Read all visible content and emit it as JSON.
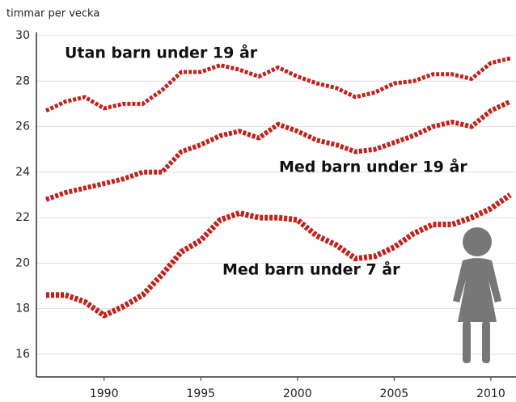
{
  "chart_data": {
    "type": "line",
    "y_label": "timmar per vecka",
    "x": [
      1987,
      1988,
      1989,
      1990,
      1991,
      1992,
      1993,
      1994,
      1995,
      1996,
      1997,
      1998,
      1999,
      2000,
      2001,
      2002,
      2003,
      2004,
      2005,
      2006,
      2007,
      2008,
      2009,
      2010,
      2011
    ],
    "series": [
      {
        "name": "Utan barn under 19 år",
        "color": "#c0221c",
        "values": [
          26.7,
          27.1,
          27.3,
          26.8,
          27.0,
          27.0,
          27.6,
          28.4,
          28.4,
          28.7,
          28.5,
          28.2,
          28.6,
          28.2,
          27.9,
          27.7,
          27.3,
          27.5,
          27.9,
          28.0,
          28.3,
          28.3,
          28.1,
          28.8,
          29.0
        ]
      },
      {
        "name": "Med barn under 19 år",
        "color": "#c0221c",
        "values": [
          22.8,
          23.1,
          23.3,
          23.5,
          23.7,
          24.0,
          24.0,
          24.9,
          25.2,
          25.6,
          25.8,
          25.5,
          26.1,
          25.8,
          25.4,
          25.2,
          24.9,
          25.0,
          25.3,
          25.6,
          26.0,
          26.2,
          26.0,
          26.7,
          27.1
        ]
      },
      {
        "name": "Med barn under 7 år",
        "color": "#c0221c",
        "values": [
          18.6,
          18.6,
          18.3,
          17.7,
          18.1,
          18.6,
          19.5,
          20.5,
          21.0,
          21.9,
          22.2,
          22.0,
          22.0,
          21.9,
          21.2,
          20.8,
          20.2,
          20.3,
          20.7,
          21.3,
          21.7,
          21.7,
          22.0,
          22.4,
          23.0
        ]
      }
    ],
    "xlim": [
      1986.5,
      2011.3
    ],
    "xticks": [
      1990,
      1995,
      2000,
      2005,
      2010
    ],
    "ylim": [
      15,
      30
    ],
    "yticks": [
      16,
      18,
      20,
      22,
      24,
      26,
      28,
      30
    ],
    "grid": true
  }
}
